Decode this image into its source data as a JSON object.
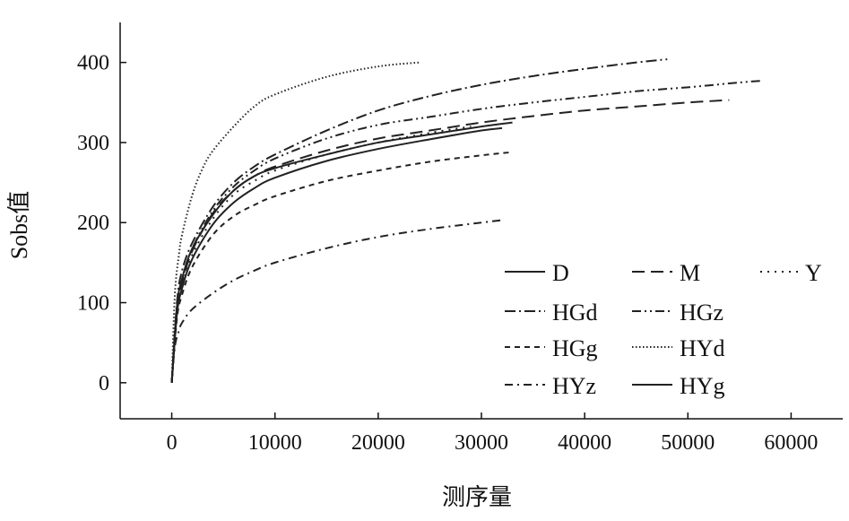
{
  "chart_data": {
    "type": "line",
    "title": "",
    "xlabel": "测序量",
    "ylabel": "Sobs值",
    "xlim": [
      -5000,
      65000
    ],
    "ylim": [
      -45,
      450
    ],
    "xticks": [
      0,
      10000,
      20000,
      30000,
      40000,
      50000,
      60000
    ],
    "yticks": [
      0,
      100,
      200,
      300,
      400
    ],
    "grid": false,
    "legend_position": "bottom-right",
    "series": [
      {
        "name": "D",
        "dash": "solid",
        "max_x": 33000,
        "points": [
          [
            0,
            0
          ],
          [
            500,
            95
          ],
          [
            1000,
            130
          ],
          [
            2000,
            168
          ],
          [
            4000,
            210
          ],
          [
            6000,
            240
          ],
          [
            8000,
            258
          ],
          [
            10000,
            268
          ],
          [
            15000,
            285
          ],
          [
            20000,
            300
          ],
          [
            25000,
            310
          ],
          [
            30000,
            320
          ],
          [
            33000,
            325
          ]
        ]
      },
      {
        "name": "M",
        "dash": "long-dash",
        "max_x": 54000,
        "points": [
          [
            0,
            0
          ],
          [
            500,
            90
          ],
          [
            1000,
            125
          ],
          [
            2000,
            165
          ],
          [
            4000,
            212
          ],
          [
            6000,
            240
          ],
          [
            8000,
            258
          ],
          [
            10000,
            270
          ],
          [
            15000,
            290
          ],
          [
            20000,
            305
          ],
          [
            25000,
            315
          ],
          [
            30000,
            325
          ],
          [
            35000,
            333
          ],
          [
            40000,
            340
          ],
          [
            45000,
            345
          ],
          [
            50000,
            350
          ],
          [
            54000,
            353
          ]
        ]
      },
      {
        "name": "Y",
        "dash": "dot-dash-sparse",
        "max_x": 29000,
        "points": [
          [
            0,
            0
          ],
          [
            500,
            88
          ],
          [
            1000,
            120
          ],
          [
            2000,
            160
          ],
          [
            4000,
            205
          ],
          [
            6000,
            235
          ],
          [
            8000,
            252
          ],
          [
            10000,
            265
          ],
          [
            15000,
            285
          ],
          [
            20000,
            300
          ],
          [
            25000,
            312
          ],
          [
            29000,
            320
          ]
        ]
      },
      {
        "name": "HGd",
        "dash": "dash-dot",
        "max_x": 48000,
        "points": [
          [
            0,
            0
          ],
          [
            500,
            100
          ],
          [
            1000,
            140
          ],
          [
            2000,
            175
          ],
          [
            4000,
            220
          ],
          [
            6000,
            250
          ],
          [
            8000,
            270
          ],
          [
            10000,
            285
          ],
          [
            15000,
            315
          ],
          [
            20000,
            340
          ],
          [
            25000,
            358
          ],
          [
            30000,
            372
          ],
          [
            35000,
            383
          ],
          [
            40000,
            392
          ],
          [
            45000,
            400
          ],
          [
            48000,
            404
          ]
        ]
      },
      {
        "name": "HGz",
        "dash": "dash-dot-dot",
        "max_x": 57000,
        "points": [
          [
            0,
            0
          ],
          [
            500,
            92
          ],
          [
            1000,
            128
          ],
          [
            2000,
            168
          ],
          [
            4000,
            215
          ],
          [
            6000,
            245
          ],
          [
            8000,
            265
          ],
          [
            10000,
            280
          ],
          [
            15000,
            305
          ],
          [
            20000,
            322
          ],
          [
            25000,
            332
          ],
          [
            30000,
            342
          ],
          [
            35000,
            350
          ],
          [
            40000,
            357
          ],
          [
            45000,
            364
          ],
          [
            50000,
            369
          ],
          [
            55000,
            375
          ],
          [
            57000,
            377
          ]
        ]
      },
      {
        "name": "HGg",
        "dash": "short-dash",
        "max_x": 33000,
        "points": [
          [
            0,
            0
          ],
          [
            500,
            80
          ],
          [
            1000,
            110
          ],
          [
            2000,
            145
          ],
          [
            4000,
            185
          ],
          [
            6000,
            208
          ],
          [
            8000,
            222
          ],
          [
            10000,
            233
          ],
          [
            15000,
            252
          ],
          [
            20000,
            265
          ],
          [
            25000,
            276
          ],
          [
            30000,
            284
          ],
          [
            33000,
            288
          ]
        ]
      },
      {
        "name": "HYd",
        "dash": "dotted",
        "max_x": 24000,
        "points": [
          [
            0,
            0
          ],
          [
            300,
            110
          ],
          [
            700,
            160
          ],
          [
            1000,
            185
          ],
          [
            2000,
            235
          ],
          [
            3000,
            268
          ],
          [
            4000,
            290
          ],
          [
            6000,
            320
          ],
          [
            8000,
            345
          ],
          [
            10000,
            360
          ],
          [
            15000,
            382
          ],
          [
            20000,
            395
          ],
          [
            24000,
            400
          ]
        ]
      },
      {
        "name": "HYz",
        "dash": "dash-dot-long",
        "max_x": 32000,
        "points": [
          [
            0,
            0
          ],
          [
            300,
            45
          ],
          [
            700,
            65
          ],
          [
            1000,
            75
          ],
          [
            2000,
            92
          ],
          [
            4000,
            112
          ],
          [
            6000,
            128
          ],
          [
            8000,
            140
          ],
          [
            10000,
            150
          ],
          [
            15000,
            168
          ],
          [
            20000,
            182
          ],
          [
            25000,
            192
          ],
          [
            30000,
            200
          ],
          [
            32000,
            203
          ]
        ]
      },
      {
        "name": "HYg",
        "dash": "solid-thin",
        "max_x": 32000,
        "points": [
          [
            0,
            0
          ],
          [
            500,
            85
          ],
          [
            1000,
            118
          ],
          [
            2000,
            155
          ],
          [
            4000,
            198
          ],
          [
            6000,
            225
          ],
          [
            8000,
            243
          ],
          [
            10000,
            256
          ],
          [
            15000,
            277
          ],
          [
            20000,
            292
          ],
          [
            25000,
            304
          ],
          [
            30000,
            315
          ],
          [
            32000,
            318
          ]
        ]
      }
    ]
  }
}
